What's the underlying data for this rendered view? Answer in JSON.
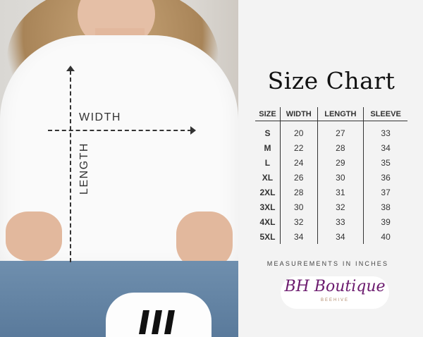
{
  "photo": {
    "width_label": "WIDTH",
    "length_label": "LENGTH"
  },
  "title": "Size Chart",
  "table": {
    "headers": [
      "SIZE",
      "WIDTH",
      "LENGTH",
      "SLEEVE"
    ],
    "rows": [
      [
        "S",
        "20",
        "27",
        "33"
      ],
      [
        "M",
        "22",
        "28",
        "34"
      ],
      [
        "L",
        "24",
        "29",
        "35"
      ],
      [
        "XL",
        "26",
        "30",
        "36"
      ],
      [
        "2XL",
        "28",
        "31",
        "37"
      ],
      [
        "3XL",
        "30",
        "32",
        "38"
      ],
      [
        "4XL",
        "32",
        "33",
        "39"
      ],
      [
        "5XL",
        "34",
        "34",
        "40"
      ]
    ]
  },
  "note": "MEASUREMENTS IN INCHES",
  "logo": {
    "main": "BH Boutique",
    "sub": "BEEHIVE",
    "color": "#6b1a6e"
  }
}
